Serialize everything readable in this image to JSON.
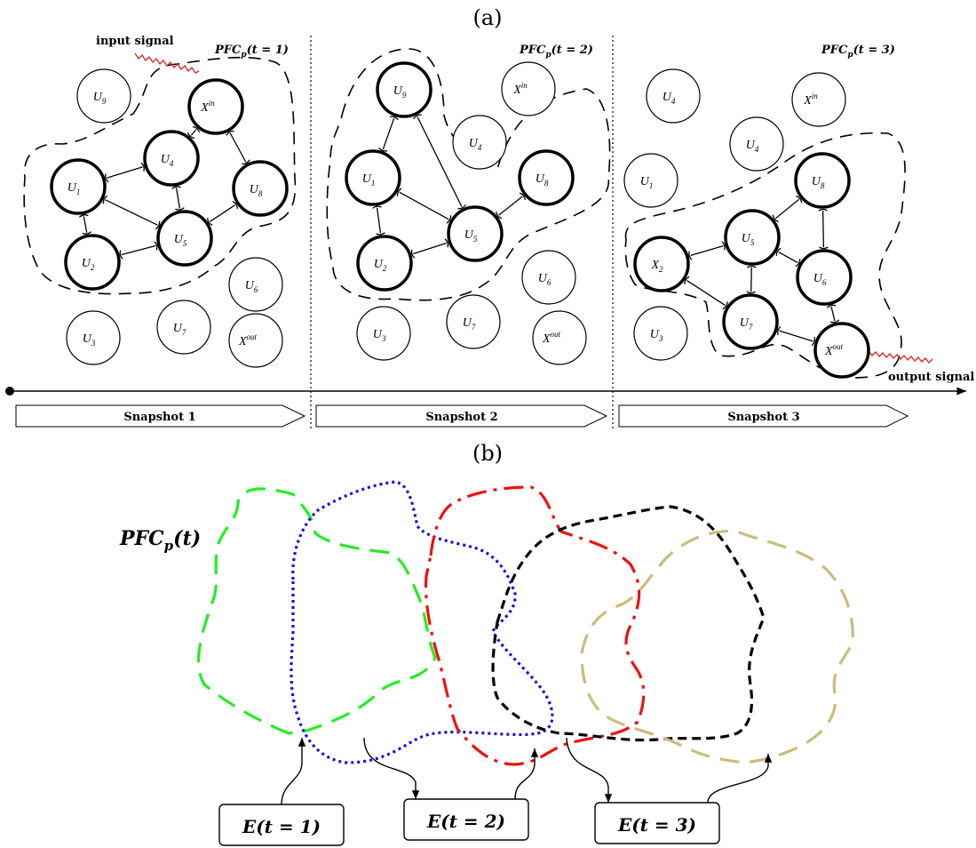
{
  "panel_a_label": "(a)",
  "panel_b_label": "(b)",
  "input_signal_label": "input signal",
  "output_signal_label": "output signal",
  "snapshots": [
    {
      "pfc_base": "PFC",
      "pfc_sub": "p",
      "pfc_arg": "(t = 1)",
      "arrow_label": "Snapshot 1",
      "nodes": [
        {
          "id": "U9",
          "base": "U",
          "sub": "9",
          "active": false
        },
        {
          "id": "Xin",
          "base": "X",
          "sup": "in",
          "active": true
        },
        {
          "id": "U4",
          "base": "U",
          "sub": "4",
          "active": true
        },
        {
          "id": "U1",
          "base": "U",
          "sub": "1",
          "active": true
        },
        {
          "id": "U8",
          "base": "U",
          "sub": "8",
          "active": true
        },
        {
          "id": "U5",
          "base": "U",
          "sub": "5",
          "active": true
        },
        {
          "id": "U2",
          "base": "U",
          "sub": "2",
          "active": true
        },
        {
          "id": "U6",
          "base": "U",
          "sub": "6",
          "active": false
        },
        {
          "id": "U3",
          "base": "U",
          "sub": "3",
          "active": false
        },
        {
          "id": "U7",
          "base": "U",
          "sub": "7",
          "active": false
        },
        {
          "id": "Xout",
          "base": "X",
          "sup": "out",
          "active": false
        }
      ]
    },
    {
      "pfc_base": "PFC",
      "pfc_sub": "p",
      "pfc_arg": "(t = 2)",
      "arrow_label": "Snapshot 2",
      "nodes": [
        {
          "id": "U9",
          "base": "U",
          "sub": "9",
          "active": true
        },
        {
          "id": "Xin",
          "base": "X",
          "sup": "in",
          "active": false
        },
        {
          "id": "U4",
          "base": "U",
          "sub": "4",
          "active": false
        },
        {
          "id": "U1",
          "base": "U",
          "sub": "1",
          "active": true
        },
        {
          "id": "U8",
          "base": "U",
          "sub": "8",
          "active": true
        },
        {
          "id": "U5",
          "base": "U",
          "sub": "5",
          "active": true
        },
        {
          "id": "U2",
          "base": "U",
          "sub": "2",
          "active": true
        },
        {
          "id": "U6",
          "base": "U",
          "sub": "6",
          "active": false
        },
        {
          "id": "U3",
          "base": "U",
          "sub": "3",
          "active": false
        },
        {
          "id": "U7",
          "base": "U",
          "sub": "7",
          "active": false
        },
        {
          "id": "Xout",
          "base": "X",
          "sup": "out",
          "active": false
        }
      ]
    },
    {
      "pfc_base": "PFC",
      "pfc_sub": "p",
      "pfc_arg": "(t = 3)",
      "arrow_label": "Snapshot 3",
      "nodes": [
        {
          "id": "U4a",
          "base": "U",
          "sub": "4",
          "active": false
        },
        {
          "id": "Xin",
          "base": "X",
          "sup": "in",
          "active": false
        },
        {
          "id": "U4b",
          "base": "U",
          "sub": "4",
          "active": false
        },
        {
          "id": "U1",
          "base": "U",
          "sub": "1",
          "active": false
        },
        {
          "id": "U8",
          "base": "U",
          "sub": "8",
          "active": true
        },
        {
          "id": "U5",
          "base": "U",
          "sub": "5",
          "active": true
        },
        {
          "id": "X2",
          "base": "X",
          "sub": "2",
          "active": true
        },
        {
          "id": "U6",
          "base": "U",
          "sub": "6",
          "active": true
        },
        {
          "id": "U3",
          "base": "U",
          "sub": "3",
          "active": false
        },
        {
          "id": "U7",
          "base": "U",
          "sub": "7",
          "active": true
        },
        {
          "id": "Xout",
          "base": "X",
          "sup": "out",
          "active": true
        }
      ]
    }
  ],
  "panel_b": {
    "pfc_base": "PFC",
    "pfc_sub": "p",
    "pfc_arg": "(t)",
    "boxes": [
      {
        "text": "E(t = 1)"
      },
      {
        "text": "E(t = 2)"
      },
      {
        "text": "E(t = 3)"
      }
    ],
    "contour_colors": [
      "#22ee22",
      "#1111dd",
      "#ee1111",
      "#000000",
      "#c8bd7a"
    ]
  }
}
